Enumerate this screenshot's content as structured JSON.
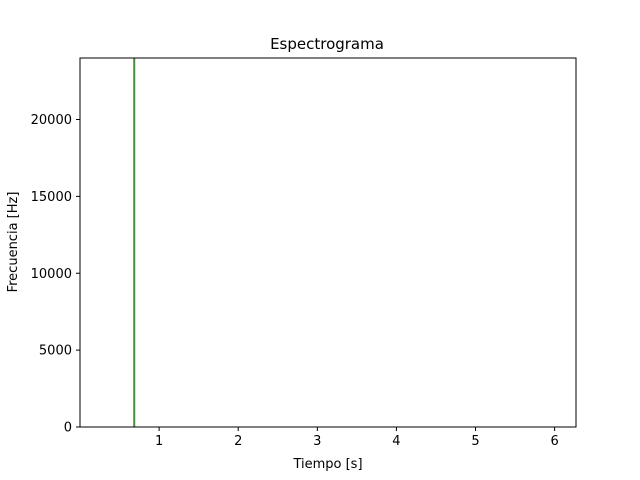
{
  "chart_data": {
    "type": "line",
    "title": "Espectrograma",
    "xlabel": "Tiempo [s]",
    "ylabel": "Frecuencia [Hz]",
    "xlim": [
      0.0,
      6.27
    ],
    "ylim": [
      0,
      24000
    ],
    "x_ticks": [
      1,
      2,
      3,
      4,
      5,
      6
    ],
    "x_tick_labels": [
      "1",
      "2",
      "3",
      "4",
      "5",
      "6"
    ],
    "y_ticks": [
      0,
      5000,
      10000,
      15000,
      20000
    ],
    "y_tick_labels": [
      "0",
      "5000",
      "10000",
      "15000",
      "20000"
    ],
    "grid": false,
    "legend": "none",
    "series": [
      {
        "x": [
          0.68,
          0.68
        ],
        "y": [
          0,
          24000
        ],
        "color": "#1f77b4"
      },
      {
        "x": [
          0.685,
          0.685
        ],
        "y": [
          0,
          24000
        ],
        "color": "#ff7f0e"
      },
      {
        "x": [
          0.69,
          0.69
        ],
        "y": [
          0,
          24000
        ],
        "color": "#2ca02c"
      }
    ]
  }
}
